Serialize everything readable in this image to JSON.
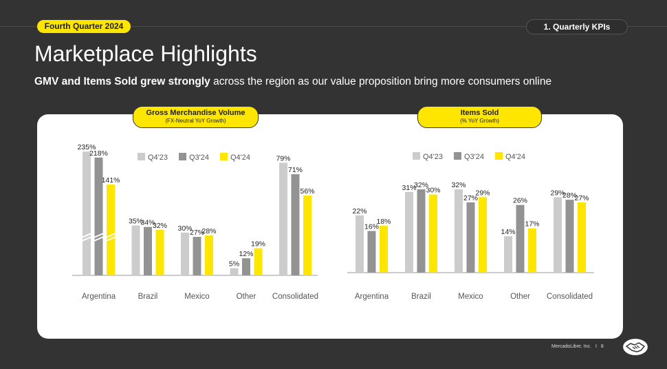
{
  "header": {
    "quarter_label": "Fourth Quarter 2024",
    "section_label": "1. Quarterly KPIs",
    "title": "Marketplace Highlights",
    "subtitle_bold": "GMV and Items Sold grew strongly",
    "subtitle_rest": " across the region as our value proposition bring more consumers online"
  },
  "charts": {
    "gmv_title": "Gross Merchandise Volume",
    "gmv_subtitle": "(FX-Neutral YoY Growth)",
    "items_title": "Items Sold",
    "items_subtitle": "(% YoY Growth)"
  },
  "colors": {
    "q4_23": "#cccccc",
    "q3_24": "#939393",
    "q4_24": "#ffe600"
  },
  "chart_data": [
    {
      "type": "bar",
      "title": "Gross Merchandise Volume",
      "subtitle": "(FX-Neutral YoY Growth)",
      "categories": [
        "Argentina",
        "Brazil",
        "Mexico",
        "Other",
        "Consolidated"
      ],
      "series": [
        {
          "name": "Q4'23",
          "values": [
            235,
            35,
            30,
            5,
            79
          ]
        },
        {
          "name": "Q3'24",
          "values": [
            218,
            34,
            27,
            12,
            71
          ]
        },
        {
          "name": "Q4'24",
          "values": [
            141,
            32,
            28,
            19,
            56
          ]
        }
      ],
      "data_labels": [
        [
          "235%",
          "35%",
          "30%",
          "5%",
          "79%"
        ],
        [
          "218%",
          "34%",
          "27%",
          "12%",
          "71%"
        ],
        [
          "141%",
          "32%",
          "28%",
          "19%",
          "56%"
        ]
      ],
      "axis_break_category": "Argentina",
      "legend_position": "top"
    },
    {
      "type": "bar",
      "title": "Items Sold",
      "subtitle": "(% YoY Growth)",
      "categories": [
        "Argentina",
        "Brazil",
        "Mexico",
        "Other",
        "Consolidated"
      ],
      "series": [
        {
          "name": "Q4'23",
          "values": [
            22,
            31,
            32,
            14,
            29
          ]
        },
        {
          "name": "Q3'24",
          "values": [
            16,
            32,
            27,
            26,
            28
          ]
        },
        {
          "name": "Q4'24",
          "values": [
            18,
            30,
            29,
            17,
            27
          ]
        }
      ],
      "data_labels": [
        [
          "22%",
          "31%",
          "32%",
          "14%",
          "29%"
        ],
        [
          "16%",
          "32%",
          "27%",
          "26%",
          "28%"
        ],
        [
          "18%",
          "30%",
          "29%",
          "17%",
          "27%"
        ]
      ],
      "legend_position": "top"
    }
  ],
  "footer": {
    "company": "MercadoLibre, Inc.",
    "separator": "I",
    "page": "8"
  }
}
